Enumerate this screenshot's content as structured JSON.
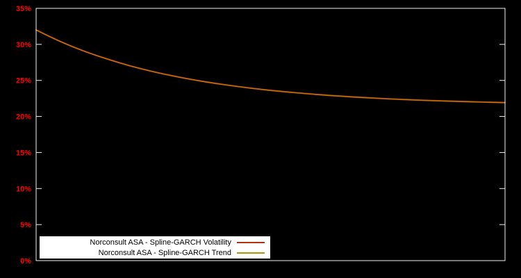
{
  "colors": {
    "background": "#000000",
    "plot_border": "#f2f2f2",
    "axis_label": "#ff0000"
  },
  "chart_data": {
    "type": "line",
    "title": "",
    "xlabel": "",
    "ylabel": "",
    "grid": false,
    "x_axis": {
      "min": 0,
      "max": 1,
      "tick_labels": []
    },
    "y_axis": {
      "min": 0,
      "max": 35,
      "tick_step": 5,
      "tick_labels": [
        "0%",
        "5%",
        "10%",
        "15%",
        "20%",
        "25%",
        "30%",
        "35%"
      ],
      "label_color": "#ff0000"
    },
    "x": [
      0,
      0.05,
      0.1,
      0.15,
      0.2,
      0.25,
      0.3,
      0.35,
      0.4,
      0.45,
      0.5,
      0.55,
      0.6,
      0.65,
      0.7,
      0.75,
      0.8,
      0.85,
      0.9,
      0.95,
      1.0
    ],
    "series": [
      {
        "name": "Norconsult ASA - Spline-GARCH Volatility",
        "color": "#b42e10",
        "line_width": 2.2,
        "opacity": 1,
        "values": [
          32.0,
          30.45,
          29.12,
          28.0,
          27.03,
          26.21,
          25.52,
          24.92,
          24.42,
          23.99,
          23.62,
          23.31,
          23.04,
          22.81,
          22.62,
          22.45,
          22.31,
          22.19,
          22.09,
          22.0,
          21.93
        ]
      },
      {
        "name": "Norconsult ASA - Spline-GARCH Trend",
        "color": "#b09400",
        "line_width": 1.2,
        "opacity": 0.8,
        "values": [
          32.0,
          30.45,
          29.12,
          28.0,
          27.03,
          26.21,
          25.52,
          24.92,
          24.42,
          23.99,
          23.62,
          23.31,
          23.04,
          22.81,
          22.62,
          22.45,
          22.31,
          22.19,
          22.09,
          22.0,
          21.93
        ]
      }
    ],
    "legend": {
      "position": "bottom-left",
      "background": "#ffffff",
      "border_color": "#000000",
      "text_color": "#000000"
    }
  }
}
